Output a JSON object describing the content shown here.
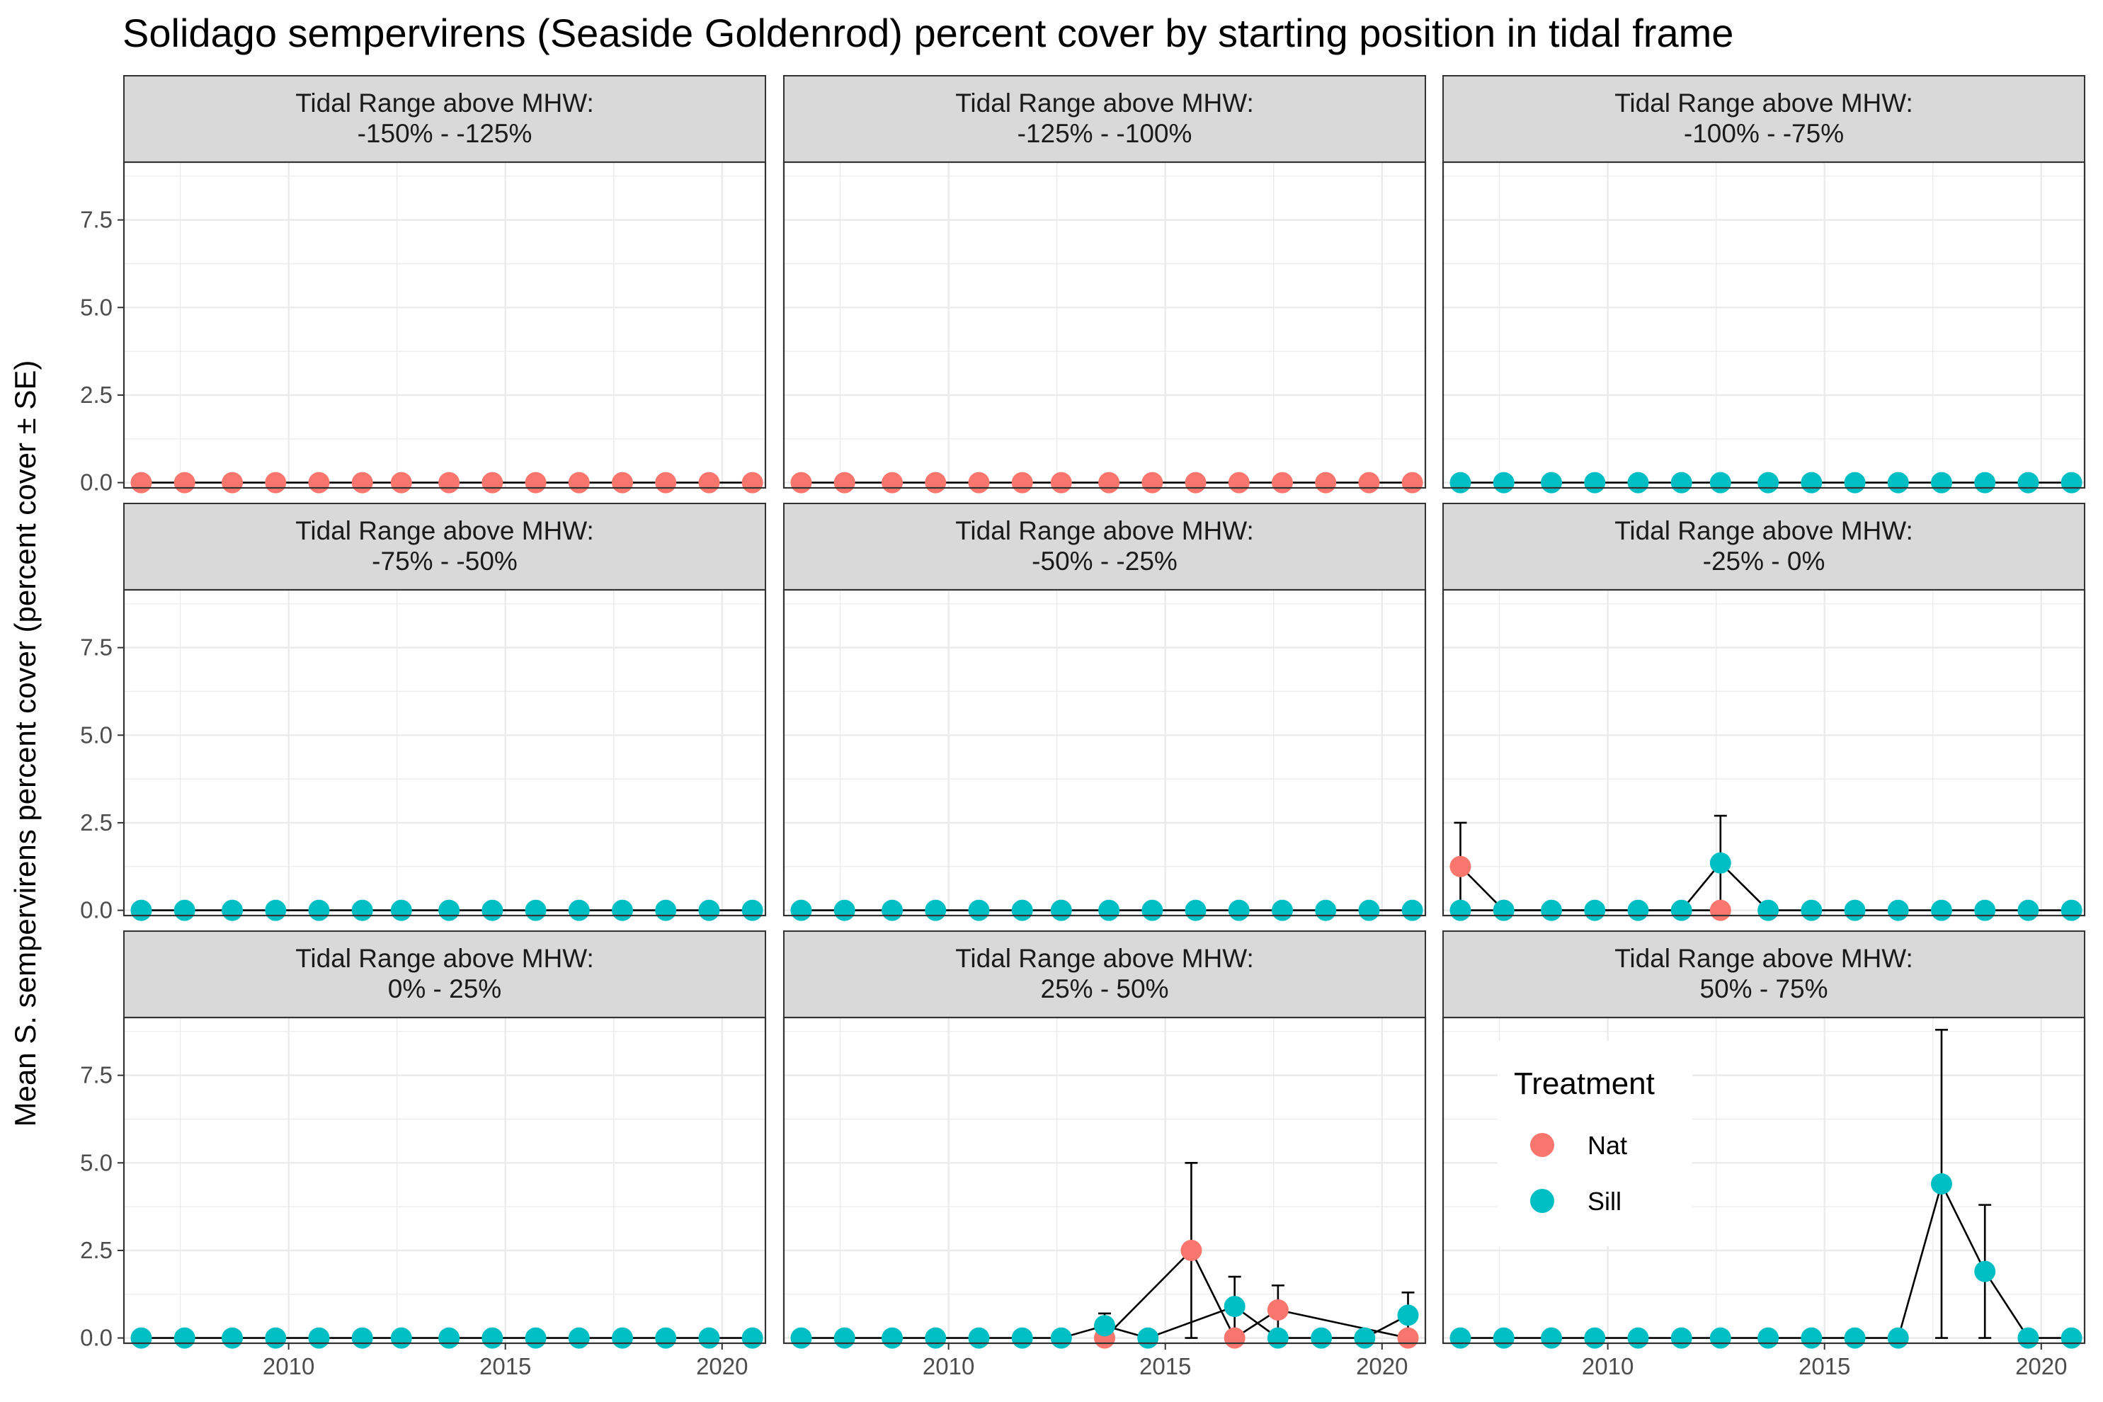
{
  "colors": {
    "Nat": "#F8766D",
    "Sill": "#00BFC4",
    "strip_bg": "#D9D9D9",
    "grid": "#EBEBEB",
    "line": "#000000"
  },
  "chart_data": {
    "type": "line",
    "title": "Solidago sempervirens (Seaside Goldenrod) percent cover by starting position in tidal frame",
    "xlabel": "",
    "ylabel": "Mean S. sempervirens percent cover (percent cover ± SE)",
    "xlim": [
      2006.2,
      2021.0
    ],
    "ylim": [
      -0.15,
      9.15
    ],
    "x_ticks": [
      2010,
      2015,
      2020
    ],
    "y_ticks": [
      0,
      2.5,
      5,
      7.5
    ],
    "y_tick_labels": [
      "0.0",
      "2.5",
      "5.0",
      "7.5"
    ],
    "strip_prefix": "Tidal Range above MHW:",
    "grid": true,
    "legend": {
      "title": "Treatment",
      "entries": [
        "Nat",
        "Sill"
      ],
      "placement": "inside panel 9, left-center"
    },
    "panels": [
      {
        "label": "-150%  -  -125%",
        "series": [
          {
            "name": "Nat",
            "x": [
              2006.6,
              2007.6,
              2008.7,
              2009.7,
              2010.7,
              2011.7,
              2012.6,
              2013.7,
              2014.7,
              2015.7,
              2016.7,
              2017.7,
              2018.7,
              2019.7,
              2020.7
            ],
            "y": [
              0,
              0,
              0,
              0,
              0,
              0,
              0,
              0,
              0,
              0,
              0,
              0,
              0,
              0,
              0
            ]
          }
        ]
      },
      {
        "label": "-125%  -  -100%",
        "series": [
          {
            "name": "Nat",
            "x": [
              2006.6,
              2007.6,
              2008.7,
              2009.7,
              2010.7,
              2011.7,
              2012.6,
              2013.7,
              2014.7,
              2015.7,
              2016.7,
              2017.7,
              2018.7,
              2019.7,
              2020.7
            ],
            "y": [
              0,
              0,
              0,
              0,
              0,
              0,
              0,
              0,
              0,
              0,
              0,
              0,
              0,
              0,
              0
            ]
          }
        ]
      },
      {
        "label": "-100%  -  -75%",
        "series": [
          {
            "name": "Sill",
            "x": [
              2006.6,
              2007.6,
              2008.7,
              2009.7,
              2010.7,
              2011.7,
              2012.6,
              2013.7,
              2014.7,
              2015.7,
              2016.7,
              2017.7,
              2018.7,
              2019.7,
              2020.7
            ],
            "y": [
              0,
              0,
              0,
              0,
              0,
              0,
              0,
              0,
              0,
              0,
              0,
              0,
              0,
              0,
              0
            ]
          }
        ]
      },
      {
        "label": "-75%  -  -50%",
        "series": [
          {
            "name": "Sill",
            "x": [
              2006.6,
              2007.6,
              2008.7,
              2009.7,
              2010.7,
              2011.7,
              2012.6,
              2013.7,
              2014.7,
              2015.7,
              2016.7,
              2017.7,
              2018.7,
              2019.7,
              2020.7
            ],
            "y": [
              0,
              0,
              0,
              0,
              0,
              0,
              0,
              0,
              0,
              0,
              0,
              0,
              0,
              0,
              0
            ]
          }
        ]
      },
      {
        "label": "-50%  -  -25%",
        "series": [
          {
            "name": "Nat",
            "x": [
              2012.6
            ],
            "y": [
              0
            ]
          },
          {
            "name": "Sill",
            "x": [
              2006.6,
              2007.6,
              2008.7,
              2009.7,
              2010.7,
              2011.7,
              2012.6,
              2013.7,
              2014.7,
              2015.7,
              2016.7,
              2017.7,
              2018.7,
              2019.7,
              2020.7
            ],
            "y": [
              0,
              0,
              0,
              0,
              0,
              0,
              0,
              0,
              0,
              0,
              0,
              0,
              0,
              0,
              0
            ]
          }
        ]
      },
      {
        "label": "-25%  -  0%",
        "series": [
          {
            "name": "Nat",
            "x": [
              2006.6,
              2007.6,
              2012.6
            ],
            "y": [
              1.25,
              0,
              0
            ],
            "se": [
              1.25,
              0,
              0
            ]
          },
          {
            "name": "Sill",
            "x": [
              2006.6,
              2007.6,
              2008.7,
              2009.7,
              2010.7,
              2011.7,
              2012.6,
              2013.7,
              2014.7,
              2015.7,
              2016.7,
              2017.7,
              2018.7,
              2019.7,
              2020.7
            ],
            "y": [
              0,
              0,
              0,
              0,
              0,
              0,
              1.35,
              0,
              0,
              0,
              0,
              0,
              0,
              0,
              0
            ],
            "se": [
              0,
              0,
              0,
              0,
              0,
              0,
              1.35,
              0,
              0,
              0,
              0,
              0,
              0,
              0,
              0
            ]
          }
        ]
      },
      {
        "label": "0%  -  25%",
        "series": [
          {
            "name": "Sill",
            "x": [
              2006.6,
              2007.6,
              2008.7,
              2009.7,
              2010.7,
              2011.7,
              2012.6,
              2013.7,
              2014.7,
              2015.7,
              2016.7,
              2017.7,
              2018.7,
              2019.7,
              2020.7
            ],
            "y": [
              0,
              0,
              0,
              0,
              0,
              0,
              0,
              0,
              0,
              0,
              0,
              0,
              0,
              0,
              0
            ]
          }
        ]
      },
      {
        "label": "25%  -  50%",
        "series": [
          {
            "name": "Nat",
            "x": [
              2013.6,
              2015.6,
              2016.6,
              2017.6,
              2020.6
            ],
            "y": [
              0,
              2.5,
              0,
              0.8,
              0
            ],
            "se": [
              0,
              2.5,
              0,
              0.7,
              0
            ]
          },
          {
            "name": "Sill",
            "x": [
              2006.6,
              2007.6,
              2008.7,
              2009.7,
              2010.7,
              2011.7,
              2012.6,
              2013.6,
              2014.6,
              2016.6,
              2017.6,
              2018.6,
              2019.6,
              2020.6
            ],
            "y": [
              0,
              0,
              0,
              0,
              0,
              0,
              0,
              0.35,
              0,
              0.9,
              0,
              0,
              0,
              0.65
            ],
            "se": [
              0,
              0,
              0,
              0,
              0,
              0,
              0,
              0.35,
              0,
              0.85,
              0,
              0,
              0,
              0.65
            ]
          }
        ]
      },
      {
        "label": "50%  -  75%",
        "series": [
          {
            "name": "Sill",
            "x": [
              2006.6,
              2007.6,
              2008.7,
              2009.7,
              2010.7,
              2011.7,
              2012.6,
              2013.7,
              2014.7,
              2015.7,
              2016.7,
              2017.7,
              2018.7,
              2019.7,
              2020.7
            ],
            "y": [
              0,
              0,
              0,
              0,
              0,
              0,
              0,
              0,
              0,
              0,
              0,
              4.4,
              1.9,
              0,
              0
            ],
            "se": [
              0,
              0,
              0,
              0,
              0,
              0,
              0,
              0,
              0,
              0,
              0,
              4.4,
              1.9,
              0,
              0
            ]
          }
        ]
      }
    ]
  }
}
